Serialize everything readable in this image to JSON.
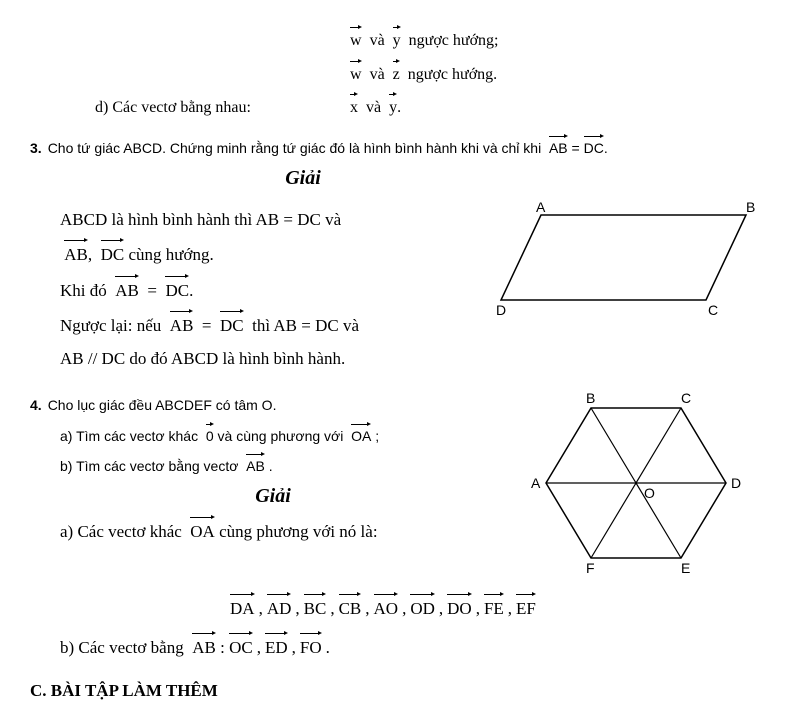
{
  "top": {
    "line1_a": "w",
    "line1_b": "y",
    "line1_mid": "và",
    "line1_end": "ngược hướng;",
    "line2_a": "w",
    "line2_b": "z",
    "line2_mid": "và",
    "line2_end": "ngược hướng.",
    "d_label": "d) Các vectơ bằng nhau:",
    "d_a": "x",
    "d_b": "y",
    "d_mid": "và",
    "d_end": "."
  },
  "p3": {
    "num": "3.",
    "stmt_a": "Cho tứ giác ABCD. Chứng minh rằng tứ giác đó là hình bình hành khi và chỉ khi",
    "stmt_v1": "AB",
    "stmt_eq": "=",
    "stmt_v2": "DC",
    "stmt_end": ".",
    "giai": "Giải",
    "l1": "ABCD là hình bình hành thì AB = DC và",
    "l2_a": "AB",
    "l2_b": "DC",
    "l2_sep": ",",
    "l2_end": "cùng hướng.",
    "l3_a": "Khi đó",
    "l3_v1": "AB",
    "l3_eq": "=",
    "l3_v2": "DC",
    "l3_end": ".",
    "l4_a": "Ngược lại: nếu",
    "l4_v1": "AB",
    "l4_eq": "=",
    "l4_v2": "DC",
    "l4_b": "thì AB = DC và",
    "l5": "AB // DC do đó ABCD là hình bình hành.",
    "fig": {
      "A": "A",
      "B": "B",
      "C": "C",
      "D": "D"
    }
  },
  "p4": {
    "num": "4.",
    "stmt": "Cho lục giác đều ABCDEF có tâm O.",
    "a_pre": "a) Tìm các vectơ khác",
    "a_zero": "0",
    "a_mid": "và cùng phương với",
    "a_v": "OA",
    "a_end": ";",
    "b_pre": "b) Tìm các vectơ bằng vectơ",
    "b_v": "AB",
    "b_end": ".",
    "giai": "Giải",
    "ans_a_pre": "a) Các vectơ khác",
    "ans_a_v": "OA",
    "ans_a_post": "cùng phương với nó là:",
    "ans_a_list": [
      "DA",
      "AD",
      "BC",
      "CB",
      "AO",
      "OD",
      "DO",
      "FE",
      "EF"
    ],
    "ans_b_pre": "b) Các vectơ bằng",
    "ans_b_v": "AB",
    "ans_b_colon": ":",
    "ans_b_list": [
      "OC",
      "ED",
      "FO"
    ],
    "fig": {
      "A": "A",
      "B": "B",
      "C": "C",
      "D": "D",
      "E": "E",
      "F": "F",
      "O": "O"
    }
  },
  "section": "C. BÀI TẬP LÀM THÊM"
}
